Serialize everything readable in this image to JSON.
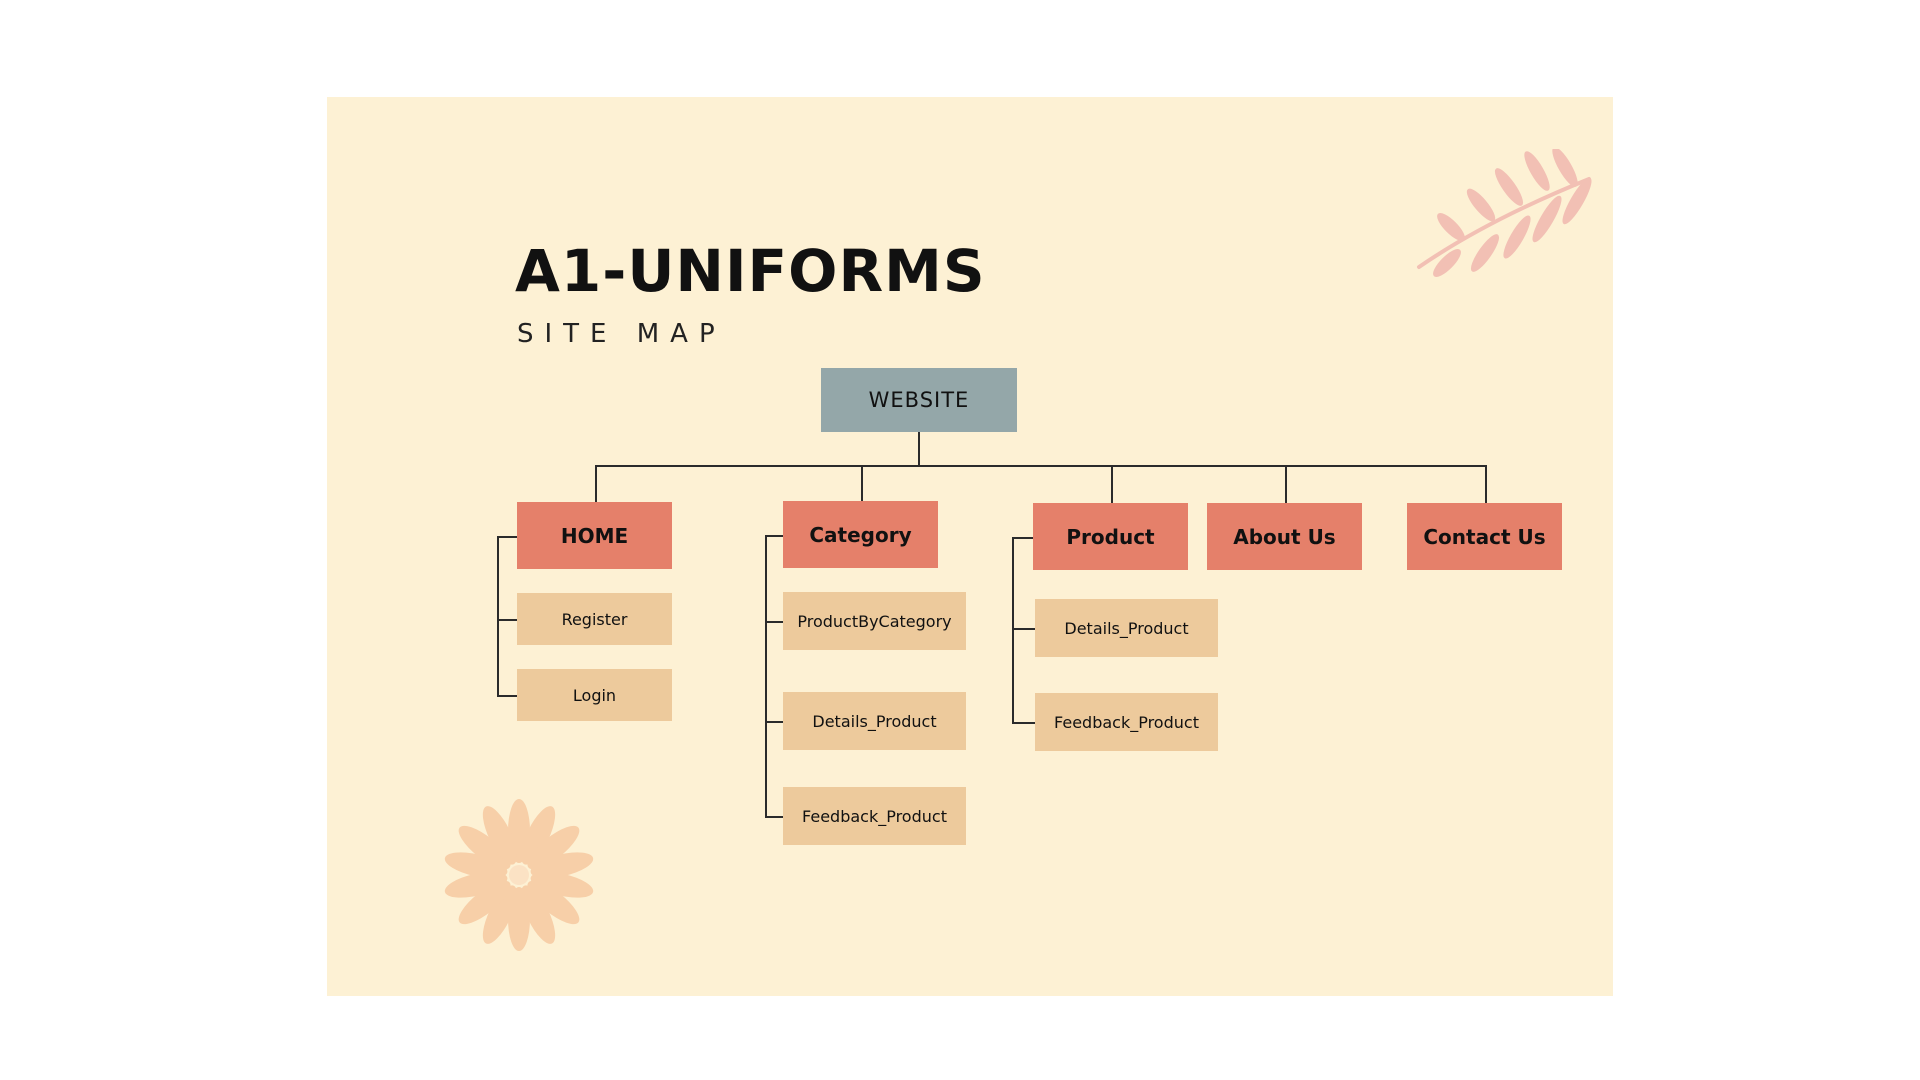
{
  "title": "A1-UNIFORMS",
  "subtitle": "SITE MAP",
  "root": "WEBSITE",
  "sections": [
    {
      "label": "HOME",
      "children": [
        "Register",
        "Login"
      ]
    },
    {
      "label": "Category",
      "children": [
        "ProductByCategory",
        "Details_Product",
        "Feedback_Product"
      ]
    },
    {
      "label": "Product",
      "children": [
        "Details_Product",
        "Feedback_Product"
      ]
    },
    {
      "label": "About Us",
      "children": []
    },
    {
      "label": "Contact Us",
      "children": []
    }
  ],
  "colors": {
    "background": "#fdf1d4",
    "root": "#94a7a9",
    "section": "#e5806a",
    "page": "#edca9c",
    "connector": "#2b2b2b",
    "leaf_decoration": "#f2c0b4",
    "flower_decoration": "#f7cfa8"
  },
  "decorations": [
    "leaf-branch-icon",
    "flower-icon"
  ]
}
